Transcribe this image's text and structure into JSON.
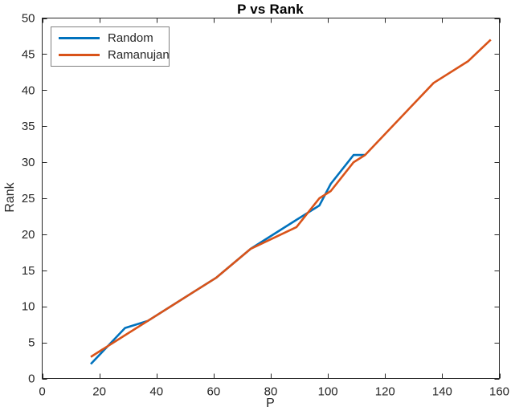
{
  "figure": {
    "title": "P vs Rank",
    "xlabel": "P",
    "ylabel": "Rank"
  },
  "colors": {
    "background": "#ffffff",
    "axis": "#262626",
    "tick_text": "#262626",
    "legend_border": "#808080",
    "series_blue": "#0072BD",
    "series_orange": "#D95319"
  },
  "chart_data": {
    "type": "line",
    "title": "P vs Rank",
    "xlabel": "P",
    "ylabel": "Rank",
    "xlim": [
      0,
      160
    ],
    "ylim": [
      0,
      50
    ],
    "xticks": [
      0,
      20,
      40,
      60,
      80,
      100,
      120,
      140,
      160
    ],
    "yticks": [
      0,
      5,
      10,
      15,
      20,
      25,
      30,
      35,
      40,
      45,
      50
    ],
    "grid": false,
    "box": true,
    "legend_position": "top-left",
    "series": [
      {
        "name": "Random",
        "color": "#0072BD",
        "x": [
          17,
          29,
          37,
          41,
          53,
          61,
          73,
          89,
          97,
          101,
          109,
          113
        ],
        "y": [
          2,
          7,
          8,
          9,
          12,
          14,
          18,
          22,
          24,
          27,
          31,
          31
        ]
      },
      {
        "name": "Ramanujan",
        "color": "#D95319",
        "x": [
          17,
          29,
          37,
          41,
          53,
          61,
          73,
          89,
          97,
          101,
          109,
          113,
          137,
          149,
          157
        ],
        "y": [
          3,
          6,
          8,
          9,
          12,
          14,
          18,
          21,
          25,
          26,
          30,
          31,
          41,
          44,
          47
        ]
      }
    ]
  }
}
